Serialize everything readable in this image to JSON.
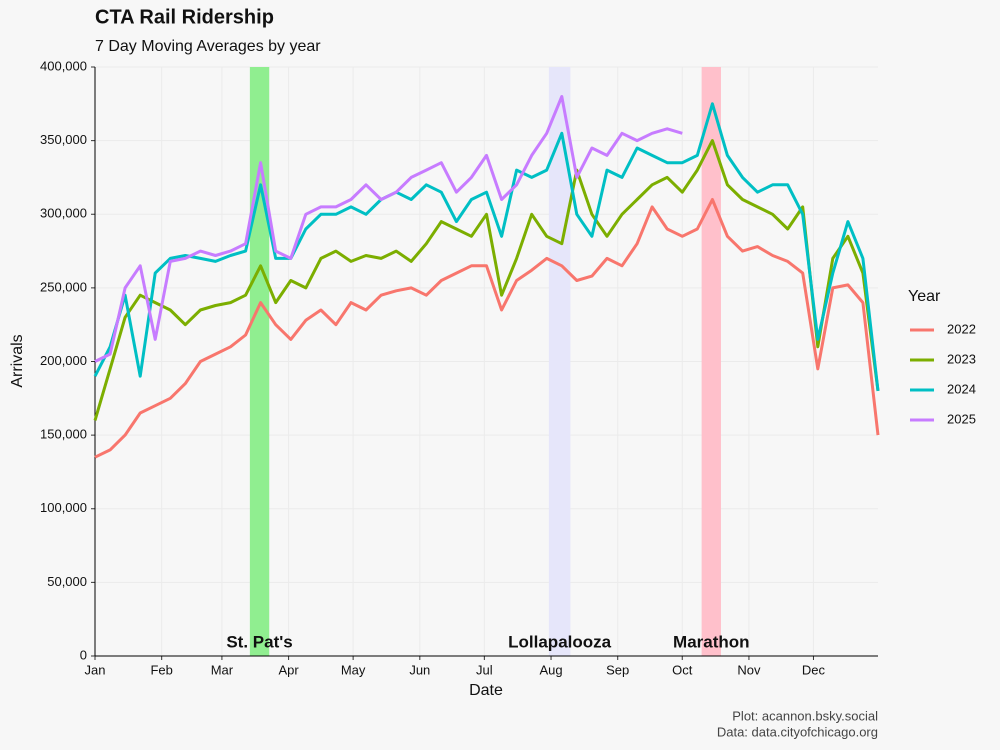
{
  "chart_data": {
    "type": "line",
    "title": "CTA Rail Ridership",
    "subtitle": "7 Day Moving Averages by year",
    "x_label": "Date",
    "y_label": "Arrivals",
    "legend_title": "Year",
    "caption": [
      "Plot: acannon.bsky.social",
      "Data: data.cityofchicago.org"
    ],
    "legend": "right",
    "grid": true,
    "x": [
      1,
      8,
      15,
      22,
      29,
      36,
      43,
      50,
      57,
      64,
      71,
      78,
      85,
      92,
      99,
      106,
      113,
      120,
      127,
      134,
      141,
      148,
      155,
      162,
      169,
      176,
      183,
      190,
      197,
      204,
      211,
      218,
      225,
      232,
      239,
      246,
      253,
      260,
      267,
      274,
      281,
      288,
      295,
      302,
      309,
      316,
      323,
      330,
      337,
      344,
      351,
      358,
      365
    ],
    "xlim": [
      1,
      365
    ],
    "xticks": [
      {
        "value": 1,
        "label": "Jan"
      },
      {
        "value": 32,
        "label": "Feb"
      },
      {
        "value": 60,
        "label": "Mar"
      },
      {
        "value": 91,
        "label": "Apr"
      },
      {
        "value": 121,
        "label": "May"
      },
      {
        "value": 152,
        "label": "Jun"
      },
      {
        "value": 182,
        "label": "Jul"
      },
      {
        "value": 213,
        "label": "Aug"
      },
      {
        "value": 244,
        "label": "Sep"
      },
      {
        "value": 274,
        "label": "Oct"
      },
      {
        "value": 305,
        "label": "Nov"
      },
      {
        "value": 335,
        "label": "Dec"
      }
    ],
    "ylim": [
      0,
      400000
    ],
    "yticks": [
      {
        "value": 0,
        "label": "0"
      },
      {
        "value": 50000,
        "label": "50,000"
      },
      {
        "value": 100000,
        "label": "100,000"
      },
      {
        "value": 150000,
        "label": "150,000"
      },
      {
        "value": 200000,
        "label": "200,000"
      },
      {
        "value": 250000,
        "label": "250,000"
      },
      {
        "value": 300000,
        "label": "300,000"
      },
      {
        "value": 350000,
        "label": "350,000"
      },
      {
        "value": 400000,
        "label": "400,000"
      }
    ],
    "annotations": [
      {
        "label": "St. Pat's",
        "start": 73,
        "end": 82,
        "color": "#90ee90"
      },
      {
        "label": "Lollapalooza",
        "start": 212,
        "end": 222,
        "color": "#e6e6fa"
      },
      {
        "label": "Marathon",
        "start": 283,
        "end": 292,
        "color": "#ffc0cb"
      }
    ],
    "series": [
      {
        "name": "2022",
        "color": "#f8766d",
        "values": [
          135000,
          140000,
          150000,
          165000,
          170000,
          175000,
          185000,
          200000,
          205000,
          210000,
          218000,
          240000,
          225000,
          215000,
          228000,
          235000,
          225000,
          240000,
          235000,
          245000,
          248000,
          250000,
          245000,
          255000,
          260000,
          265000,
          265000,
          235000,
          255000,
          262000,
          270000,
          265000,
          255000,
          258000,
          270000,
          265000,
          280000,
          305000,
          290000,
          285000,
          290000,
          310000,
          285000,
          275000,
          278000,
          272000,
          268000,
          260000,
          195000,
          250000,
          252000,
          240000,
          150000
        ]
      },
      {
        "name": "2023",
        "color": "#7cae00",
        "values": [
          160000,
          195000,
          230000,
          245000,
          240000,
          235000,
          225000,
          235000,
          238000,
          240000,
          245000,
          265000,
          240000,
          255000,
          250000,
          270000,
          275000,
          268000,
          272000,
          270000,
          275000,
          268000,
          280000,
          295000,
          290000,
          285000,
          300000,
          245000,
          270000,
          300000,
          285000,
          280000,
          330000,
          300000,
          285000,
          300000,
          310000,
          320000,
          325000,
          315000,
          330000,
          350000,
          320000,
          310000,
          305000,
          300000,
          290000,
          305000,
          210000,
          270000,
          285000,
          260000,
          180000
        ]
      },
      {
        "name": "2024",
        "color": "#00bfc4",
        "values": [
          190000,
          210000,
          245000,
          190000,
          260000,
          270000,
          272000,
          270000,
          268000,
          272000,
          275000,
          320000,
          270000,
          270000,
          290000,
          300000,
          300000,
          305000,
          300000,
          310000,
          315000,
          310000,
          320000,
          315000,
          295000,
          310000,
          315000,
          285000,
          330000,
          325000,
          330000,
          355000,
          300000,
          285000,
          330000,
          325000,
          345000,
          340000,
          335000,
          335000,
          340000,
          375000,
          340000,
          325000,
          315000,
          320000,
          320000,
          300000,
          215000,
          260000,
          295000,
          270000,
          180000
        ]
      },
      {
        "name": "2025",
        "color": "#c77cff",
        "values": [
          200000,
          205000,
          250000,
          265000,
          215000,
          268000,
          270000,
          275000,
          272000,
          275000,
          280000,
          335000,
          275000,
          270000,
          300000,
          305000,
          305000,
          310000,
          320000,
          310000,
          315000,
          325000,
          330000,
          335000,
          315000,
          325000,
          340000,
          310000,
          320000,
          340000,
          355000,
          380000,
          325000,
          345000,
          340000,
          355000,
          350000,
          355000,
          358000,
          355000,
          null,
          null,
          null,
          null,
          null,
          null,
          null,
          null,
          null,
          null,
          null,
          null,
          null
        ]
      }
    ]
  }
}
